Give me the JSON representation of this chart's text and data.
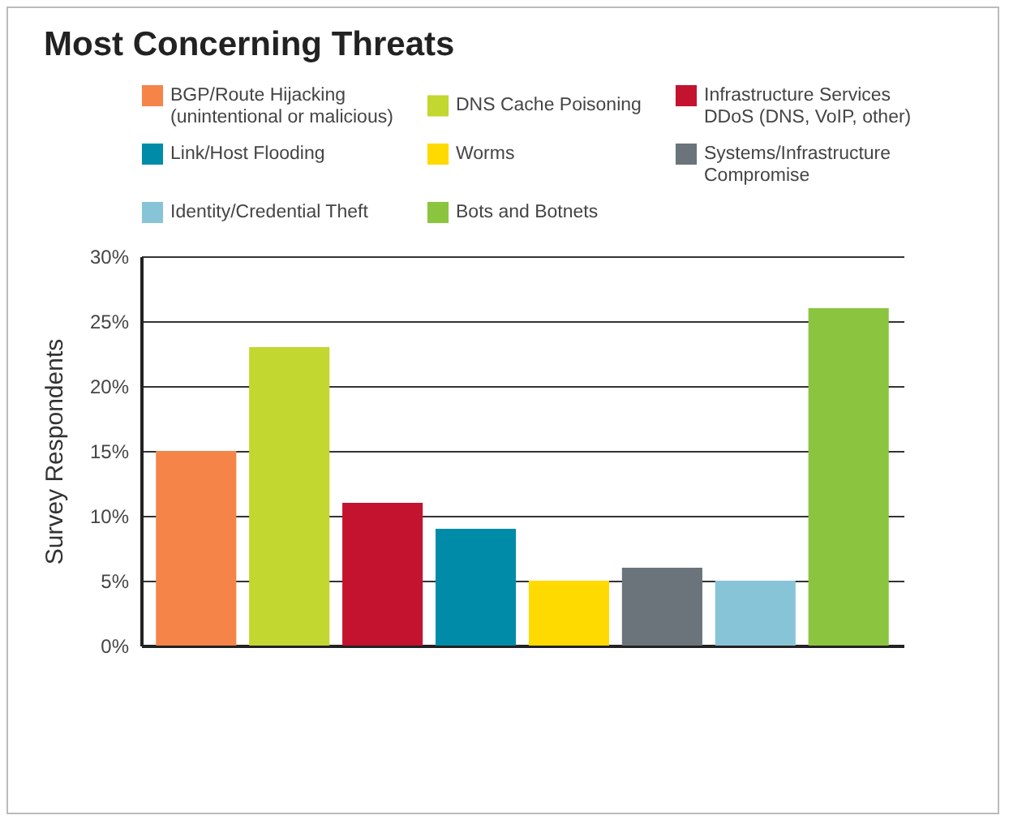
{
  "chart_data": {
    "type": "bar",
    "title": "Most Concerning Threats",
    "ylabel": "Survey Respondents",
    "categories": [
      null,
      null,
      null,
      null,
      null,
      null,
      null,
      null
    ],
    "series": [
      {
        "name": "BGP/Route Hijacking (unintentional or malicious)",
        "color": "#f48448",
        "values": [
          15,
          null,
          null,
          null,
          null,
          null,
          null,
          null
        ]
      },
      {
        "name": "DNS Cache Poisoning",
        "color": "#c2d72f",
        "values": [
          null,
          23,
          null,
          null,
          null,
          null,
          null,
          null
        ]
      },
      {
        "name": "Infrastructure Services DDoS (DNS, VoIP, other)",
        "color": "#c3132f",
        "values": [
          null,
          null,
          11,
          null,
          null,
          null,
          null,
          null
        ]
      },
      {
        "name": "Link/Host Flooding",
        "color": "#008ca8",
        "values": [
          null,
          null,
          null,
          9,
          null,
          null,
          null,
          null
        ]
      },
      {
        "name": "Worms",
        "color": "#ffda00",
        "values": [
          null,
          null,
          null,
          null,
          5,
          null,
          null,
          null
        ]
      },
      {
        "name": "Systems/Infrastructure Compromise",
        "color": "#6a747a",
        "values": [
          null,
          null,
          null,
          null,
          null,
          6,
          null,
          null
        ]
      },
      {
        "name": "Identity/Credential Theft",
        "color": "#87c4d8",
        "values": [
          null,
          null,
          null,
          null,
          null,
          null,
          5,
          null
        ]
      },
      {
        "name": "Bots and Botnets",
        "color": "#8bc43f",
        "values": [
          null,
          null,
          null,
          null,
          null,
          null,
          null,
          26
        ]
      }
    ],
    "ylim": [
      0,
      30
    ],
    "yticks": [
      {
        "value": 0,
        "label": "0%"
      },
      {
        "value": 5,
        "label": "5%"
      },
      {
        "value": 10,
        "label": "10%"
      },
      {
        "value": 15,
        "label": "15%"
      },
      {
        "value": 20,
        "label": "20%"
      },
      {
        "value": 25,
        "label": "25%"
      },
      {
        "value": 30,
        "label": "30%"
      }
    ],
    "grid": "y",
    "legend": "top",
    "tick_labels": "y"
  }
}
